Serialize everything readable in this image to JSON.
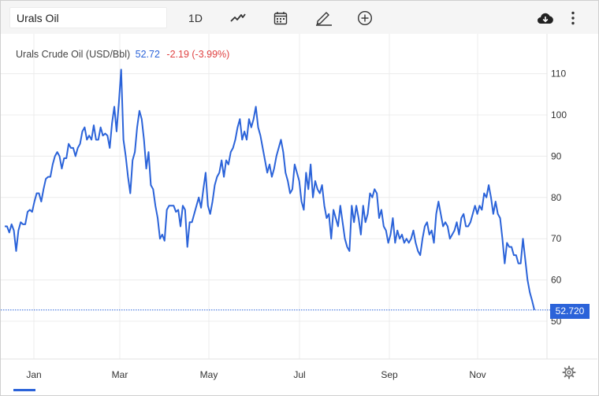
{
  "toolbar": {
    "search_value": "Urals Oil",
    "interval_label": "1D",
    "icons": [
      "line-chart-icon",
      "calendar-icon",
      "pencil-icon",
      "add-indicator-icon",
      "download-icon",
      "more-vertical-icon"
    ]
  },
  "legend": {
    "name": "Urals Crude Oil (USD/Bbl)",
    "price": "52.72",
    "change": "-2.19 (-3.99%)"
  },
  "last_price_label": "52.720",
  "colors": {
    "line": "#2b63d9",
    "negative": "#e04343",
    "grid": "#ececec"
  },
  "chart_data": {
    "type": "line",
    "title": "Urals Crude Oil (USD/Bbl)",
    "x_ticks": [
      "Jan",
      "Mar",
      "May",
      "Jul",
      "Sep",
      "Nov"
    ],
    "y_ticks": [
      50,
      60,
      70,
      80,
      90,
      100,
      110
    ],
    "ylim": [
      40,
      116
    ],
    "y_axis_position": "right",
    "grid": true,
    "last_value": 52.72,
    "series": [
      {
        "values": [
          73,
          73,
          71.5,
          73.5,
          72,
          67,
          72,
          74,
          73.5,
          73.5,
          76.5,
          77,
          76.5,
          79,
          81,
          81,
          79,
          82,
          84.5,
          85,
          85,
          88,
          90,
          91,
          90,
          87,
          89.5,
          89.5,
          93,
          92,
          92,
          90,
          92,
          93,
          96,
          97,
          94,
          95,
          94,
          97.5,
          94,
          94,
          97,
          95,
          95.5,
          95,
          92,
          98,
          102,
          96,
          103,
          111,
          94,
          90,
          85,
          81,
          89,
          91,
          97,
          101,
          99,
          94,
          87,
          91,
          83,
          82,
          78,
          75,
          70,
          71,
          69.5,
          77,
          78,
          78,
          78,
          76.5,
          77,
          73,
          78,
          77,
          68,
          74,
          74,
          76,
          78,
          80,
          77.5,
          82,
          86,
          78,
          76,
          79,
          83,
          85,
          86,
          89,
          85,
          89,
          88,
          91,
          92,
          94,
          97,
          99,
          94,
          96,
          94,
          99,
          97,
          99,
          102,
          97,
          95,
          92,
          89,
          86,
          88,
          85,
          87,
          90,
          92,
          94,
          91,
          86,
          84,
          81,
          82,
          88,
          86,
          84,
          79,
          77,
          86,
          82,
          88,
          80,
          84,
          82,
          81,
          83,
          78,
          75,
          76,
          70,
          77,
          75,
          73,
          78,
          74,
          70,
          68,
          67,
          78,
          74,
          78,
          75,
          71,
          78,
          74,
          76,
          81,
          80,
          82,
          81,
          75,
          77,
          73,
          72,
          69,
          71,
          75,
          69,
          72,
          70,
          71,
          69,
          70,
          69,
          70,
          72,
          69,
          67,
          66,
          70,
          73,
          74,
          71,
          72,
          69,
          76,
          79,
          76,
          73,
          74,
          73,
          70,
          71,
          72,
          74,
          71,
          75,
          76,
          73,
          73,
          74,
          76,
          78,
          76,
          78,
          77,
          81,
          80,
          83,
          80,
          76,
          79,
          76,
          75,
          70,
          64,
          69,
          68,
          68,
          66,
          66,
          64,
          64,
          70,
          65,
          60,
          57,
          55,
          52.72
        ]
      }
    ]
  }
}
